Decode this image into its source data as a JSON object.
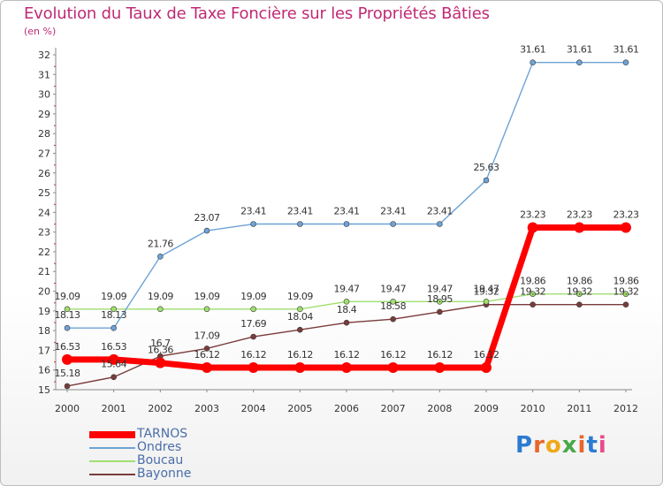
{
  "header": {
    "title": "Evolution du Taux de Taxe Foncière sur les Propriétés Bâties",
    "unit": "(en %)"
  },
  "logo": {
    "text": "Proxiti",
    "colors": [
      "#2b7bd1",
      "#e8672a",
      "#f0a818",
      "#4aa84a",
      "#e8672a",
      "#2b7bd1",
      "#e84a8a"
    ]
  },
  "chart_data": {
    "type": "line",
    "title": "Evolution du Taux de Taxe Foncière sur les Propriétés Bâties",
    "ylabel": "(en %)",
    "xlabel": "",
    "ylim": [
      15,
      32
    ],
    "yticks": [
      15,
      16,
      17,
      18,
      19,
      20,
      21,
      22,
      23,
      24,
      25,
      26,
      27,
      28,
      29,
      30,
      31,
      32
    ],
    "x": [
      "2000",
      "2001",
      "2002",
      "2003",
      "2004",
      "2005",
      "2006",
      "2007",
      "2008",
      "2009",
      "2010",
      "2011",
      "2012"
    ],
    "series": [
      {
        "name": "TARNOS",
        "color": "#ff0000",
        "values": [
          16.53,
          16.53,
          16.36,
          16.12,
          16.12,
          16.12,
          16.12,
          16.12,
          16.12,
          16.12,
          23.23,
          23.23,
          23.23
        ],
        "labels": [
          "16.53",
          "16.53",
          "16.36",
          "16.12",
          "16.12",
          "16.12",
          "16.12",
          "16.12",
          "16.12",
          "16.12",
          "23.23",
          "23.23",
          "23.23"
        ]
      },
      {
        "name": "Ondres",
        "color": "#6ea3d6",
        "values": [
          18.13,
          18.13,
          21.76,
          23.07,
          23.41,
          23.41,
          23.41,
          23.41,
          23.41,
          25.63,
          31.61,
          31.61,
          31.61
        ],
        "labels": [
          "18.13",
          "18.13",
          "21.76",
          "23.07",
          "23.41",
          "23.41",
          "23.41",
          "23.41",
          "23.41",
          "25.63",
          "31.61",
          "31.61",
          "31.61"
        ]
      },
      {
        "name": "Boucau",
        "color": "#9fdf6f",
        "values": [
          19.09,
          19.09,
          19.09,
          19.09,
          19.09,
          19.09,
          19.47,
          19.47,
          19.47,
          19.47,
          19.86,
          19.86,
          19.86
        ],
        "labels": [
          "19.09",
          "19.09",
          "19.09",
          "19.09",
          "19.09",
          "19.09",
          "19.47",
          "19.47",
          "19.47",
          "19.47",
          "19.86",
          "19.86",
          "19.86"
        ]
      },
      {
        "name": "Bayonne",
        "color": "#7a3b3b",
        "values": [
          15.18,
          15.64,
          16.7,
          17.09,
          17.69,
          18.04,
          18.4,
          18.58,
          18.95,
          19.32,
          19.32,
          19.32,
          19.32
        ],
        "labels": [
          "15.18",
          "15.64",
          "16.7",
          "17.09",
          "17.69",
          "18.04",
          "18.4",
          "18.58",
          "18.95",
          "19.32",
          "19.32",
          "19.32",
          "19.32"
        ]
      }
    ],
    "legend": "bottom-left",
    "grid": false
  }
}
